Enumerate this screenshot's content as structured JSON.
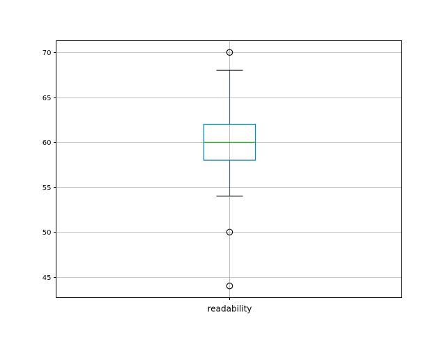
{
  "chart_data": {
    "type": "box",
    "title": "",
    "xlabel": "",
    "ylabel": "",
    "categories": [
      "readability"
    ],
    "boxes": [
      {
        "name": "readability",
        "whisker_low": 54,
        "q1": 58,
        "median": 60,
        "q3": 62,
        "whisker_high": 68,
        "outliers": [
          70,
          50,
          44
        ]
      }
    ],
    "ylim": [
      42.7,
      71.3
    ],
    "yticks": [
      45,
      50,
      55,
      60,
      65,
      70
    ],
    "grid": true,
    "colors": {
      "box": "#1f77b4",
      "median": "#2ca02c",
      "whisker_cap": "#000000",
      "grid": "#b0b0b0"
    }
  }
}
